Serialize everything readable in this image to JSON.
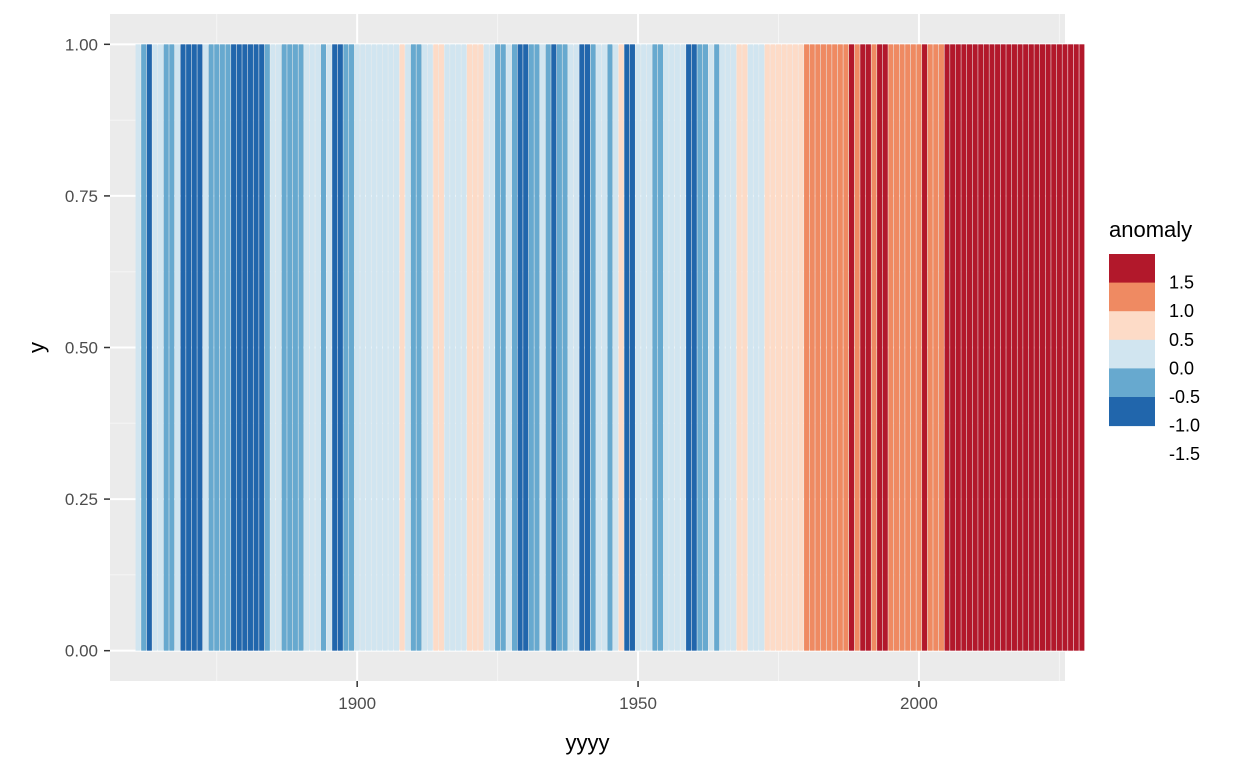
{
  "chart_data": {
    "type": "bar",
    "xlabel": "yyyy",
    "ylabel": "y",
    "xlim": [
      1856,
      2026
    ],
    "ylim": [
      -0.05,
      1.05
    ],
    "x_ticks": [
      1900,
      1950,
      2000
    ],
    "x_tick_labels": [
      "1900",
      "1950",
      "2000"
    ],
    "y_ticks": [
      0,
      0.25,
      0.5,
      0.75,
      1.0
    ],
    "y_tick_labels": [
      "0.00",
      "0.25",
      "0.50",
      "0.75",
      "1.00"
    ],
    "grid": true,
    "bar_height": 1.0,
    "legend": {
      "title": "anomaly",
      "position": "right",
      "breaks": [
        "1.5",
        "1.0",
        "0.5",
        "0.0",
        "-0.5",
        "-1.0",
        "-1.5"
      ],
      "colors": [
        "#b2182b",
        "#ef8a62",
        "#fddbc7",
        "#d1e5f0",
        "#67a9cf",
        "#2166ac"
      ]
    },
    "colors": {
      "panel_bg": "#ebebeb",
      "grid_major": "#ffffff",
      "grid_minor": "#f5f5f5"
    },
    "x_start": 1861,
    "anomaly_class": "2102211200002111100000012211112221200112222222232112233222233322112100112101122001221230022211222200112122233222333333344444444545545544444454445555555555555555555555555"
  }
}
